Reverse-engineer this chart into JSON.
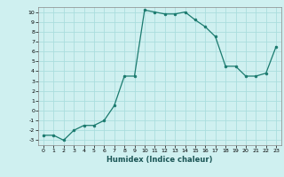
{
  "x": [
    0,
    1,
    2,
    3,
    4,
    5,
    6,
    7,
    8,
    9,
    10,
    11,
    12,
    13,
    14,
    15,
    16,
    17,
    18,
    19,
    20,
    21,
    22,
    23
  ],
  "y": [
    -2.5,
    -2.5,
    -3.0,
    -2.0,
    -1.5,
    -1.5,
    -1.0,
    0.5,
    3.5,
    3.5,
    10.2,
    10.0,
    9.8,
    9.8,
    10.0,
    9.2,
    8.5,
    7.5,
    4.5,
    4.5,
    3.5,
    3.5,
    3.8,
    6.5
  ],
  "xlabel": "Humidex (Indice chaleur)",
  "line_color": "#1a7a6e",
  "marker_color": "#1a7a6e",
  "bg_color": "#cff0f0",
  "grid_color": "#aadddd",
  "xlim": [
    -0.5,
    23.5
  ],
  "ylim": [
    -3.5,
    10.5
  ],
  "yticks": [
    -3,
    -2,
    -1,
    0,
    1,
    2,
    3,
    4,
    5,
    6,
    7,
    8,
    9,
    10
  ],
  "xticks": [
    0,
    1,
    2,
    3,
    4,
    5,
    6,
    7,
    8,
    9,
    10,
    11,
    12,
    13,
    14,
    15,
    16,
    17,
    18,
    19,
    20,
    21,
    22,
    23
  ]
}
